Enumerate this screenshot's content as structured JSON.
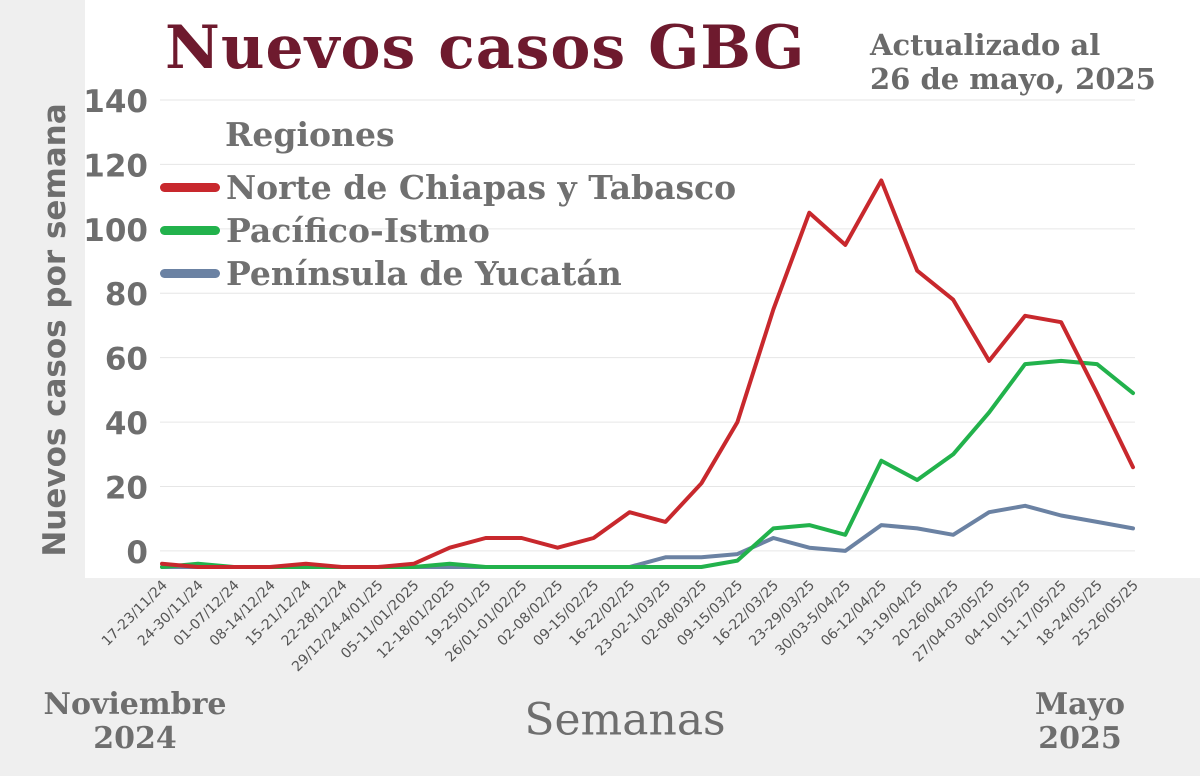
{
  "chart_data": {
    "type": "line",
    "title": "Nuevos casos GBG",
    "subtitle": [
      "Actualizado al",
      "26 de mayo, 2025"
    ],
    "xlabel": "Semanas",
    "ylabel": "Nuevos casos por semana",
    "ylim": [
      -5,
      140
    ],
    "yticks": [
      0,
      20,
      40,
      60,
      80,
      100,
      120,
      140
    ],
    "grid": true,
    "legend": {
      "title": "Regiones",
      "position": "top-left"
    },
    "x_start_label": [
      "Noviembre",
      "2024"
    ],
    "x_end_label": [
      "Mayo",
      "2025"
    ],
    "categories": [
      "17-23/11/24",
      "24-30/11/24",
      "01-07/12/24",
      "08-14/12/24",
      "15-21/12/24",
      "22-28/12/24",
      "29/12/24-4/01/25",
      "05-11/01/2025",
      "12-18/01/2025",
      "19-25/01/25",
      "26/01-01/02/25",
      "02-08/02/25",
      "09-15/02/25",
      "16-22/02/25",
      "23-02-1/03/25",
      "02-08/03/25",
      "09-15/03/25",
      "16-22/03/25",
      "23-29/03/25",
      "30/03-5/04/25",
      "06-12/04/25",
      "13-19/04/25",
      "20-26/04/25",
      "27/04-03/05/25",
      "04-10/05/25",
      "11-17/05/25",
      "18-24/05/25",
      "25-26/05/25"
    ],
    "series": [
      {
        "name": "Norte de Chiapas y Tabasco",
        "color": "#c8282d",
        "values": [
          -4,
          -5,
          -5,
          -5,
          -4,
          -5,
          -5,
          -4,
          1,
          4,
          4,
          1,
          4,
          12,
          9,
          21,
          40,
          75,
          105,
          95,
          115,
          87,
          78,
          59,
          73,
          71,
          49,
          26
        ]
      },
      {
        "name": "Pacífico-Istmo",
        "color": "#22b24c",
        "values": [
          -5,
          -4,
          -5,
          -5,
          -5,
          -5,
          -5,
          -5,
          -4,
          -5,
          -5,
          -5,
          -5,
          -5,
          -5,
          -5,
          -3,
          7,
          8,
          5,
          28,
          22,
          30,
          43,
          58,
          59,
          58,
          49
        ]
      },
      {
        "name": "Península de Yucatán",
        "color": "#6b82a3",
        "values": [
          -5,
          -5,
          -5,
          -5,
          -5,
          -5,
          -5,
          -5,
          -5,
          -5,
          -5,
          -5,
          -5,
          -5,
          -2,
          -2,
          -1,
          4,
          1,
          0,
          8,
          7,
          5,
          12,
          14,
          11,
          9,
          7
        ]
      }
    ],
    "axis_color": "#6e6e6e",
    "title_color": "#6e1a2e"
  }
}
